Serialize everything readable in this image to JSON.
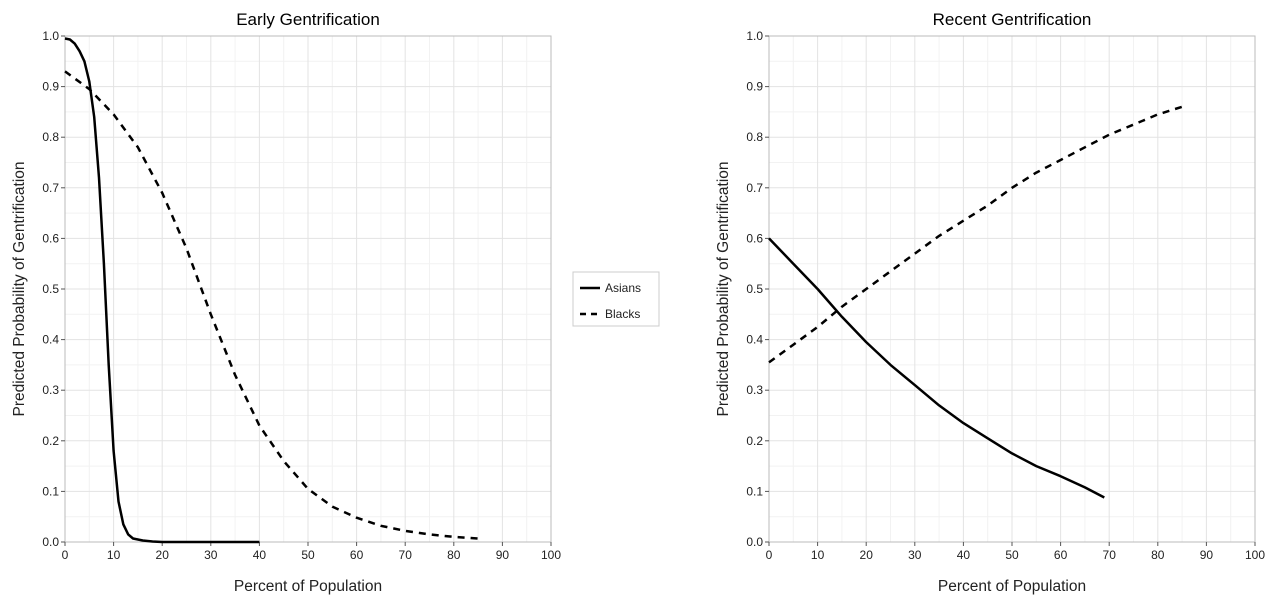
{
  "legend": {
    "entries": [
      {
        "name": "Asians",
        "style": "solid"
      },
      {
        "name": "Blacks",
        "style": "dashed"
      }
    ],
    "placement": "between-panels"
  },
  "colors": {
    "line": "#000000",
    "grid_major": "#e3e3e3",
    "grid_minor": "#f2f2f2",
    "panel_border": "#bbbbbb",
    "tick": "#555555"
  },
  "chart_data": [
    {
      "type": "line",
      "title": "Early Gentrification",
      "xlabel": "Percent of Population",
      "ylabel": "Predicted Probability of Gentrification",
      "xlim": [
        0,
        100
      ],
      "ylim": [
        0,
        1
      ],
      "x_ticks": [
        0,
        10,
        20,
        30,
        40,
        50,
        60,
        70,
        80,
        90,
        100
      ],
      "y_ticks": [
        0.0,
        0.1,
        0.2,
        0.3,
        0.4,
        0.5,
        0.6,
        0.7,
        0.8,
        0.9,
        1.0
      ],
      "x_tick_labels": [
        "0",
        "10",
        "20",
        "30",
        "40",
        "50",
        "60",
        "70",
        "80",
        "90",
        "100"
      ],
      "y_tick_labels": [
        "0.0",
        "0.1",
        "0.2",
        "0.3",
        "0.4",
        "0.5",
        "0.6",
        "0.7",
        "0.8",
        "0.9",
        "1.0"
      ],
      "grid": true,
      "series": [
        {
          "name": "Asians",
          "style": "solid",
          "points": [
            [
              0,
              0.995
            ],
            [
              1,
              0.993
            ],
            [
              2,
              0.985
            ],
            [
              3,
              0.97
            ],
            [
              4,
              0.95
            ],
            [
              5,
              0.91
            ],
            [
              6,
              0.84
            ],
            [
              7,
              0.72
            ],
            [
              8,
              0.55
            ],
            [
              9,
              0.35
            ],
            [
              10,
              0.18
            ],
            [
              11,
              0.08
            ],
            [
              12,
              0.035
            ],
            [
              13,
              0.015
            ],
            [
              14,
              0.007
            ],
            [
              16,
              0.003
            ],
            [
              18,
              0.001
            ],
            [
              20,
              0.0
            ],
            [
              30,
              0.0
            ],
            [
              40,
              0.0
            ]
          ]
        },
        {
          "name": "Blacks",
          "style": "dashed",
          "points": [
            [
              0,
              0.93
            ],
            [
              5,
              0.895
            ],
            [
              10,
              0.845
            ],
            [
              15,
              0.78
            ],
            [
              20,
              0.69
            ],
            [
              25,
              0.58
            ],
            [
              30,
              0.45
            ],
            [
              35,
              0.33
            ],
            [
              40,
              0.23
            ],
            [
              45,
              0.16
            ],
            [
              50,
              0.105
            ],
            [
              55,
              0.07
            ],
            [
              60,
              0.048
            ],
            [
              65,
              0.032
            ],
            [
              70,
              0.022
            ],
            [
              75,
              0.015
            ],
            [
              80,
              0.01
            ],
            [
              85,
              0.007
            ]
          ]
        }
      ]
    },
    {
      "type": "line",
      "title": "Recent Gentrification",
      "xlabel": "Percent of Population",
      "ylabel": "Predicted Probability of Gentrification",
      "xlim": [
        0,
        100
      ],
      "ylim": [
        0,
        1
      ],
      "x_ticks": [
        0,
        10,
        20,
        30,
        40,
        50,
        60,
        70,
        80,
        90,
        100
      ],
      "y_ticks": [
        0.0,
        0.1,
        0.2,
        0.3,
        0.4,
        0.5,
        0.6,
        0.7,
        0.8,
        0.9,
        1.0
      ],
      "x_tick_labels": [
        "0",
        "10",
        "20",
        "30",
        "40",
        "50",
        "60",
        "70",
        "80",
        "90",
        "100"
      ],
      "y_tick_labels": [
        "0.0",
        "0.1",
        "0.2",
        "0.3",
        "0.4",
        "0.5",
        "0.6",
        "0.7",
        "0.8",
        "0.9",
        "1.0"
      ],
      "grid": true,
      "series": [
        {
          "name": "Asians",
          "style": "solid",
          "points": [
            [
              0,
              0.6
            ],
            [
              5,
              0.55
            ],
            [
              10,
              0.5
            ],
            [
              15,
              0.445
            ],
            [
              20,
              0.395
            ],
            [
              25,
              0.35
            ],
            [
              30,
              0.31
            ],
            [
              35,
              0.27
            ],
            [
              40,
              0.235
            ],
            [
              45,
              0.205
            ],
            [
              50,
              0.175
            ],
            [
              55,
              0.15
            ],
            [
              60,
              0.13
            ],
            [
              65,
              0.108
            ],
            [
              69,
              0.088
            ]
          ]
        },
        {
          "name": "Blacks",
          "style": "dashed",
          "points": [
            [
              0,
              0.355
            ],
            [
              5,
              0.39
            ],
            [
              10,
              0.425
            ],
            [
              15,
              0.465
            ],
            [
              20,
              0.5
            ],
            [
              25,
              0.535
            ],
            [
              30,
              0.57
            ],
            [
              35,
              0.605
            ],
            [
              40,
              0.635
            ],
            [
              45,
              0.665
            ],
            [
              50,
              0.7
            ],
            [
              55,
              0.73
            ],
            [
              60,
              0.755
            ],
            [
              65,
              0.78
            ],
            [
              70,
              0.805
            ],
            [
              75,
              0.825
            ],
            [
              80,
              0.845
            ],
            [
              85,
              0.86
            ]
          ]
        }
      ]
    }
  ]
}
